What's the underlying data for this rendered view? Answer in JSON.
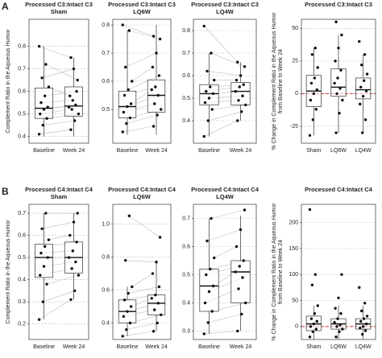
{
  "chart_data": [
    {
      "type": "box",
      "panel_label": "A",
      "title": "Processed C3:Intact C3",
      "subtitle": "Sham",
      "ylabel": [
        "Complement Ratio in the Aqueous Humor"
      ],
      "paired": true,
      "grid": true,
      "categories": [
        "Baseline",
        "Week 24"
      ],
      "ylim": [
        0.37,
        0.92
      ],
      "yticks": [
        0.4,
        0.5,
        0.6,
        0.7,
        0.8
      ],
      "boxes": [
        {
          "min": 0.4,
          "q1": 0.48,
          "median": 0.525,
          "q3": 0.615,
          "max": 0.8
        },
        {
          "min": 0.4,
          "q1": 0.49,
          "median": 0.535,
          "q3": 0.62,
          "max": 0.75
        }
      ],
      "points": [
        [
          0.41,
          0.45,
          0.48,
          0.5,
          0.52,
          0.53,
          0.55,
          0.58,
          0.62,
          0.66,
          0.72,
          0.8
        ],
        [
          0.43,
          0.47,
          0.5,
          0.52,
          0.54,
          0.53,
          0.56,
          0.6,
          0.58,
          0.7,
          0.65,
          0.75
        ]
      ]
    },
    {
      "type": "box",
      "title": "Processed C3:Intact C3",
      "subtitle": "LQ6W",
      "paired": true,
      "grid": true,
      "categories": [
        "Baseline",
        "Week 24"
      ],
      "ylim": [
        0.38,
        0.82
      ],
      "yticks": [
        0.5,
        0.6,
        0.7,
        0.8
      ],
      "boxes": [
        {
          "min": 0.41,
          "q1": 0.47,
          "median": 0.51,
          "q3": 0.565,
          "max": 0.78
        },
        {
          "min": 0.41,
          "q1": 0.49,
          "median": 0.55,
          "q3": 0.605,
          "max": 0.8
        }
      ],
      "points": [
        [
          0.42,
          0.45,
          0.47,
          0.49,
          0.51,
          0.52,
          0.55,
          0.57,
          0.6,
          0.65,
          0.78,
          0.8
        ],
        [
          0.44,
          0.48,
          0.5,
          0.52,
          0.55,
          0.57,
          0.58,
          0.62,
          0.65,
          0.7,
          0.75,
          0.76
        ]
      ]
    },
    {
      "type": "box",
      "title": "Processed C3:Intact C3",
      "subtitle": "LQ4W",
      "paired": true,
      "grid": true,
      "categories": [
        "Baseline",
        "Week 24"
      ],
      "ylim": [
        0.3,
        0.85
      ],
      "yticks": [
        0.4,
        0.5,
        0.6,
        0.7,
        0.8
      ],
      "boxes": [
        {
          "min": 0.33,
          "q1": 0.47,
          "median": 0.52,
          "q3": 0.56,
          "max": 0.7
        },
        {
          "min": 0.4,
          "q1": 0.47,
          "median": 0.53,
          "q3": 0.57,
          "max": 0.66
        }
      ],
      "points": [
        [
          0.33,
          0.4,
          0.45,
          0.48,
          0.5,
          0.52,
          0.53,
          0.55,
          0.58,
          0.62,
          0.7,
          0.82
        ],
        [
          0.4,
          0.44,
          0.47,
          0.49,
          0.51,
          0.53,
          0.55,
          0.56,
          0.58,
          0.6,
          0.64,
          0.66
        ]
      ]
    },
    {
      "type": "box",
      "title": "Processed C3:Intact C3",
      "ylabel": [
        "% Change in Complement Ratio in the Aqueous Humor",
        "from Baseline to Week 24"
      ],
      "paired": false,
      "grid": true,
      "hline": 0,
      "categories": [
        "Sham",
        "LQ6W",
        "LQ4W"
      ],
      "ylim": [
        -38,
        57
      ],
      "yticks": [
        -25,
        0,
        25,
        50
      ],
      "boxes": [
        {
          "min": -32,
          "q1": -10,
          "median": 2,
          "q3": 14,
          "max": 35
        },
        {
          "min": -30,
          "q1": -2,
          "median": 5,
          "q3": 19,
          "max": 45
        },
        {
          "min": -30,
          "q1": -4,
          "median": 3,
          "q3": 12,
          "max": 30
        }
      ],
      "points": [
        [
          -32,
          -20,
          -12,
          -5,
          0,
          3,
          8,
          12,
          20,
          30,
          35
        ],
        [
          -30,
          -15,
          -5,
          0,
          4,
          8,
          12,
          18,
          25,
          35,
          45,
          55
        ],
        [
          -30,
          -20,
          -8,
          -2,
          2,
          5,
          10,
          15,
          22,
          30,
          40
        ]
      ]
    },
    {
      "type": "box",
      "panel_label": "B",
      "title": "Processed C4:Intact C4",
      "subtitle": "Sham",
      "ylabel": [
        "Complement Ratio in the Aqueous Humor"
      ],
      "paired": true,
      "grid": true,
      "categories": [
        "Baseline",
        "Week 24"
      ],
      "ylim": [
        0.13,
        0.74
      ],
      "yticks": [
        0.2,
        0.3,
        0.4,
        0.5,
        0.6,
        0.7
      ],
      "boxes": [
        {
          "min": 0.22,
          "q1": 0.41,
          "median": 0.5,
          "q3": 0.56,
          "max": 0.7
        },
        {
          "min": 0.31,
          "q1": 0.43,
          "median": 0.5,
          "q3": 0.57,
          "max": 0.7
        }
      ],
      "points": [
        [
          0.22,
          0.3,
          0.38,
          0.42,
          0.46,
          0.5,
          0.52,
          0.55,
          0.58,
          0.63,
          0.7
        ],
        [
          0.31,
          0.35,
          0.42,
          0.45,
          0.48,
          0.5,
          0.53,
          0.57,
          0.6,
          0.66,
          0.7
        ]
      ]
    },
    {
      "type": "box",
      "title": "Processed C4:Intact C4",
      "subtitle": "LQ6W",
      "paired": true,
      "grid": true,
      "categories": [
        "Baseline",
        "Week 24"
      ],
      "ylim": [
        0.3,
        1.12
      ],
      "yticks": [
        0.4,
        0.6,
        0.8,
        {
          "value": 1,
          "label": "1.0"
        }
      ],
      "boxes": [
        {
          "min": 0.32,
          "q1": 0.4,
          "median": 0.47,
          "q3": 0.54,
          "max": 0.62
        },
        {
          "min": 0.35,
          "q1": 0.45,
          "median": 0.52,
          "q3": 0.57,
          "max": 0.77
        }
      ],
      "points": [
        [
          0.32,
          0.36,
          0.4,
          0.44,
          0.47,
          0.5,
          0.54,
          0.58,
          0.62,
          0.78,
          1.05
        ],
        [
          0.35,
          0.4,
          0.45,
          0.48,
          0.52,
          0.55,
          0.57,
          0.62,
          0.7,
          0.77,
          0.92
        ]
      ]
    },
    {
      "type": "box",
      "title": "Processed C4:Intact C4",
      "subtitle": "LQ4W",
      "paired": true,
      "grid": true,
      "categories": [
        "Baseline",
        "Week 24"
      ],
      "ylim": [
        0.27,
        0.75
      ],
      "yticks": [
        0.3,
        0.4,
        0.5,
        0.6,
        0.7
      ],
      "boxes": [
        {
          "min": 0.29,
          "q1": 0.37,
          "median": 0.46,
          "q3": 0.52,
          "max": 0.7
        },
        {
          "min": 0.3,
          "q1": 0.4,
          "median": 0.51,
          "q3": 0.55,
          "max": 0.71
        }
      ],
      "points": [
        [
          0.29,
          0.33,
          0.37,
          0.4,
          0.44,
          0.46,
          0.5,
          0.52,
          0.56,
          0.62,
          0.7
        ],
        [
          0.3,
          0.36,
          0.4,
          0.45,
          0.49,
          0.51,
          0.53,
          0.55,
          0.6,
          0.66,
          0.73
        ]
      ]
    },
    {
      "type": "box",
      "title": "Processed C4:Intact C4",
      "ylabel": [
        "% Change in Complement Ratio in the Aqueous Humor",
        "from Baseline to Week 24"
      ],
      "paired": false,
      "grid": true,
      "hline": 0,
      "categories": [
        "Sham",
        "LQ6W",
        "LQ4W"
      ],
      "ylim": [
        -25,
        235
      ],
      "yticks": [
        0,
        50,
        100,
        150,
        200
      ],
      "boxes": [
        {
          "min": -25,
          "q1": -8,
          "median": 5,
          "q3": 20,
          "max": 40
        },
        {
          "min": -25,
          "q1": -5,
          "median": 5,
          "q3": 15,
          "max": 40
        },
        {
          "min": -25,
          "q1": -5,
          "median": 5,
          "q3": 15,
          "max": 40
        }
      ],
      "points": [
        [
          -20,
          -10,
          -5,
          0,
          5,
          10,
          15,
          25,
          40,
          80,
          100,
          225
        ],
        [
          -20,
          -10,
          -5,
          0,
          3,
          8,
          15,
          25,
          35,
          55,
          100
        ],
        [
          -15,
          -8,
          -3,
          0,
          5,
          10,
          15,
          20,
          30,
          45,
          75
        ]
      ]
    }
  ]
}
